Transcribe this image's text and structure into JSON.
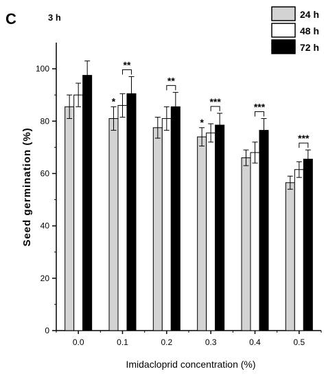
{
  "panel_letter": "C",
  "chart_data": {
    "type": "bar",
    "title": "3 h",
    "xlabel": "Imidacloprid concentration (%)",
    "ylabel": "Seed germination (%)",
    "ylim": [
      0,
      110
    ],
    "y_ticks": [
      "0",
      "20",
      "40",
      "60",
      "80",
      "100"
    ],
    "categories": [
      "0.0",
      "0.1",
      "0.2",
      "0.3",
      "0.4",
      "0.5"
    ],
    "legend_position": "top-right",
    "grid": false,
    "series": [
      {
        "name": "24 h",
        "color": "#d3d3d3",
        "values": [
          85.5,
          81,
          77.5,
          74,
          66,
          56.5
        ],
        "errors": [
          4.5,
          4.5,
          4,
          3.5,
          3,
          2.5
        ]
      },
      {
        "name": "48 h",
        "color": "#ffffff",
        "values": [
          90,
          86,
          81,
          75.5,
          68,
          61.5
        ],
        "errors": [
          4.5,
          4.5,
          4.5,
          3.5,
          4,
          3
        ]
      },
      {
        "name": "72 h",
        "color": "#000000",
        "values": [
          97.5,
          90.5,
          85.5,
          78.5,
          76.5,
          65.5
        ],
        "errors": [
          5.5,
          6.5,
          5.5,
          4.5,
          4.5,
          3.5
        ]
      }
    ],
    "star_marks": [
      {
        "category": 1,
        "series": 0,
        "label": "*"
      },
      {
        "category": 3,
        "series": 0,
        "label": "*"
      }
    ],
    "significance_brackets": [
      {
        "category": 1,
        "label": "**"
      },
      {
        "category": 2,
        "label": "**"
      },
      {
        "category": 3,
        "label": "***"
      },
      {
        "category": 4,
        "label": "***"
      },
      {
        "category": 5,
        "label": "***"
      }
    ]
  }
}
